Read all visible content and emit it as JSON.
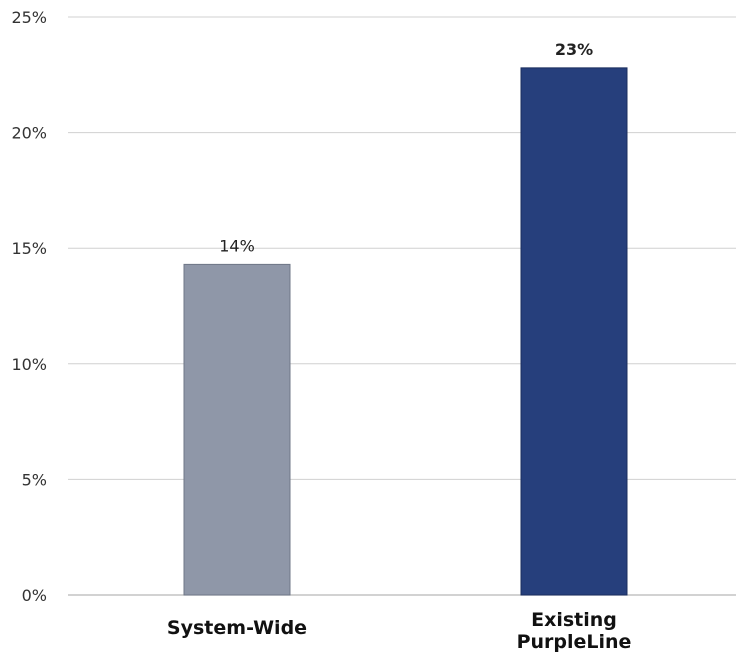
{
  "chart_data": {
    "type": "bar",
    "title": "",
    "xlabel": "",
    "ylabel": "",
    "categories": [
      "System-Wide",
      "Existing PurpleLine"
    ],
    "category_lines": [
      [
        "System-Wide"
      ],
      [
        "Existing",
        "PurpleLine"
      ]
    ],
    "values": [
      14.3,
      22.8
    ],
    "data_labels": [
      "14%",
      "23%"
    ],
    "ylim": [
      0,
      25
    ],
    "yticks": [
      0,
      5,
      10,
      15,
      20,
      25
    ],
    "ytick_labels": [
      "0%",
      "5%",
      "10%",
      "15%",
      "20%",
      "25%"
    ],
    "grid": true,
    "bar_colors": [
      "#8f97a8",
      "#263f7c"
    ],
    "bar_edge_colors": [
      "#6f7787",
      "#1a2d5e"
    ]
  }
}
